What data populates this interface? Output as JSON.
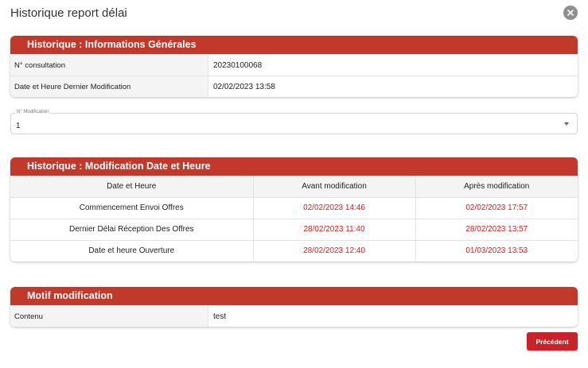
{
  "dialog": {
    "title": "Historique report délai",
    "close_icon": "close-icon"
  },
  "general_info": {
    "header": "Historique : Informations Générales",
    "rows": [
      {
        "label": "N° consultation",
        "value": "20230100068"
      },
      {
        "label": "Date et Heure Dernier Modification",
        "value": "02/02/2023 13:58"
      }
    ]
  },
  "modification_select": {
    "label": "N° Modification",
    "value": "1",
    "arrow_icon": "caret-down-icon"
  },
  "modification_table": {
    "header": "Historique : Modification Date et Heure",
    "columns": [
      "Date et Heure",
      "Avant modification",
      "Après modification"
    ],
    "rows": [
      {
        "label": "Commencement Envoi Offres",
        "before": "02/02/2023 14:46",
        "after": "02/02/2023 17:57"
      },
      {
        "label": "Dernier Délai Réception Des Offres",
        "before": "28/02/2023 11:40",
        "after": "28/02/2023 13:57"
      },
      {
        "label": "Date et heure Ouverture",
        "before": "28/02/2023 12:40",
        "after": "01/03/2023 13:53"
      }
    ]
  },
  "motif": {
    "header": "Motif modification",
    "label": "Contenu",
    "value": "test"
  },
  "footer": {
    "previous_label": "Précédent"
  },
  "colors": {
    "header_red": "#c0392b",
    "date_red": "#e01919",
    "button_red": "#c8222b"
  }
}
